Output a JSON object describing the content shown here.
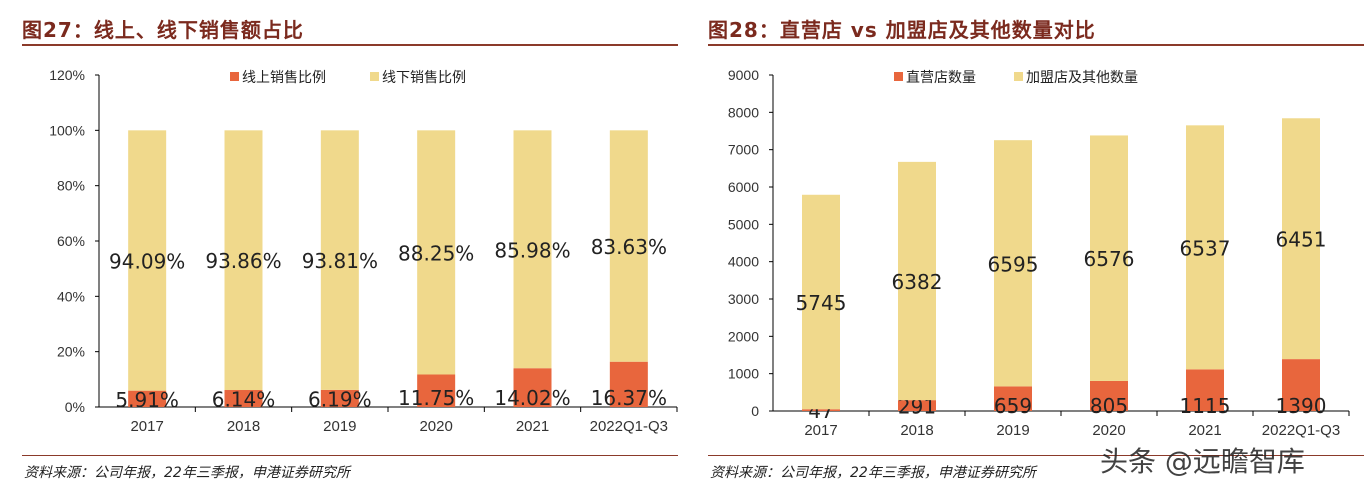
{
  "colors": {
    "online": "#E8663D",
    "offline": "#F0D98C",
    "title": "#7B2A1E"
  },
  "left": {
    "title": "图27：线上、线下销售额占比",
    "source": "资料来源：公司年报，22年三季报，申港证券研究所"
  },
  "right": {
    "title": "图28：直营店 vs 加盟店及其他数量对比",
    "source": "资料来源：公司年报，22年三季报，申港证券研究所"
  },
  "watermark": "头条 @远瞻智库",
  "chart_data": [
    {
      "type": "bar",
      "stacked": true,
      "categories": [
        "2017",
        "2018",
        "2019",
        "2020",
        "2021",
        "2022Q1-Q3"
      ],
      "series": [
        {
          "name": "线上销售比例",
          "values": [
            5.91,
            6.14,
            6.19,
            11.75,
            14.02,
            16.37
          ],
          "labels": [
            "5.91%",
            "6.14%",
            "6.19%",
            "11.75%",
            "14.02%",
            "16.37%"
          ]
        },
        {
          "name": "线下销售比例",
          "values": [
            94.09,
            93.86,
            93.81,
            88.25,
            85.98,
            83.63
          ],
          "labels": [
            "94.09%",
            "93.86%",
            "93.81%",
            "88.25%",
            "85.98%",
            "83.63%"
          ]
        }
      ],
      "ylim": [
        0,
        120
      ],
      "yticks": [
        "0%",
        "20%",
        "40%",
        "60%",
        "80%",
        "100%",
        "120%"
      ],
      "legend": "top",
      "grid": false
    },
    {
      "type": "bar",
      "stacked": true,
      "categories": [
        "2017",
        "2018",
        "2019",
        "2020",
        "2021",
        "2022Q1-Q3"
      ],
      "series": [
        {
          "name": "直营店数量",
          "values": [
            47,
            291,
            659,
            805,
            1115,
            1390
          ],
          "labels": [
            "47",
            "291",
            "659",
            "805",
            "1115",
            "1390"
          ]
        },
        {
          "name": "加盟店及其他数量",
          "values": [
            5745,
            6382,
            6595,
            6576,
            6537,
            6451
          ],
          "labels": [
            "5745",
            "6382",
            "6595",
            "6576",
            "6537",
            "6451"
          ]
        }
      ],
      "ylim": [
        0,
        9000
      ],
      "yticks": [
        "0",
        "1000",
        "2000",
        "3000",
        "4000",
        "5000",
        "6000",
        "7000",
        "8000",
        "9000"
      ],
      "legend": "top",
      "grid": false
    }
  ]
}
